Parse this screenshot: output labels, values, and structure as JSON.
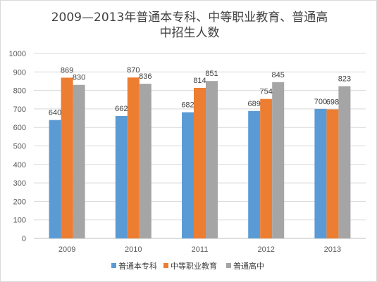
{
  "chart_data": {
    "type": "bar",
    "title_lines": [
      "2009—2013年普通本专科、中等职业教育、普通高",
      "中招生人数"
    ],
    "categories": [
      "2009",
      "2010",
      "2011",
      "2012",
      "2013"
    ],
    "series": [
      {
        "name": "普通本专科",
        "color": "#5b9bd5",
        "values": [
          640,
          662,
          682,
          689,
          700
        ]
      },
      {
        "name": "中等职业教育",
        "color": "#ed7d31",
        "values": [
          869,
          870,
          814,
          754,
          698
        ]
      },
      {
        "name": "普通高中",
        "color": "#a5a5a5",
        "values": [
          830,
          836,
          851,
          845,
          823
        ]
      }
    ],
    "ylim": [
      0,
      1000
    ],
    "yticks": [
      0,
      100,
      200,
      300,
      400,
      500,
      600,
      700,
      800,
      900,
      1000
    ],
    "grid": true,
    "legend": "bottom"
  }
}
